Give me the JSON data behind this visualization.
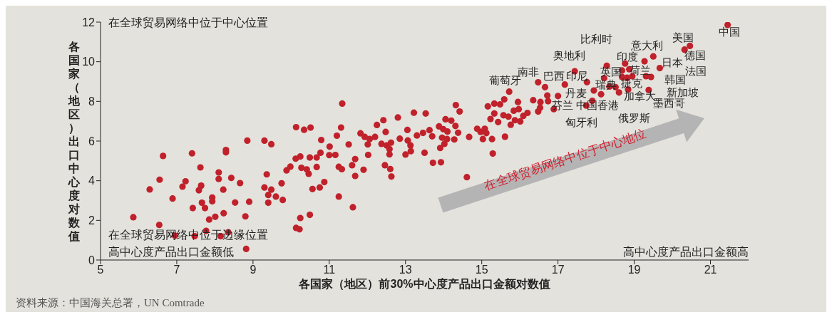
{
  "chart_data": {
    "type": "scatter",
    "xlabel": "各国家（地区）前30%中心度产品出口金额对数值",
    "ylabel": "各国家（地区）出口中心度对数值",
    "xlim": [
      5,
      22
    ],
    "xticks": [
      5,
      7,
      9,
      11,
      13,
      15,
      17,
      19,
      21
    ],
    "ylim": [
      0,
      12
    ],
    "yticks": [
      0,
      2,
      4,
      6,
      8,
      10,
      12
    ],
    "grid": false,
    "legend": false,
    "marker": "circle",
    "series": [
      {
        "color": "#c0212b",
        "x": [
          5.86,
          6.29,
          6.55,
          6.64,
          6.54,
          6.89,
          6.95,
          7.15,
          7.23,
          7.4,
          7.42,
          7.62,
          7.64,
          7.58,
          7.66,
          7.74,
          7.85,
          7.93,
          7.93,
          8.01,
          8.1,
          8.1,
          8.29,
          8.29,
          8.22,
          8.23,
          8.43,
          8.53,
          8.66,
          8.8,
          8.85,
          8.9,
          9.3,
          9.48,
          9.36,
          9.3,
          9.4,
          9.48,
          9.4,
          9.6,
          9.78,
          9.75,
          9.88,
          9.98,
          10.13,
          10.34,
          10.51,
          10.12,
          10.24,
          10.27,
          10.49,
          10.67,
          10.67,
          10.41,
          10.46,
          10.56,
          10.75,
          10.87,
          10.79,
          10.77,
          11.01,
          11,
          10.49,
          10.24,
          10.13,
          10.22,
          7.47,
          7.77,
          8.15,
          8.35,
          8.82,
          11.16,
          11.2,
          11.31,
          11.34,
          11.25,
          11.33,
          11.25,
          11.51,
          11.6,
          11.68,
          11.68,
          11.62,
          11.82,
          11.93,
          12.01,
          12.02,
          11.9,
          12.06,
          12.2,
          12.25,
          12.42,
          12.48,
          12.37,
          12.51,
          12.62,
          12.58,
          12.58,
          12.46,
          12.6,
          12.63,
          12.8,
          12.85,
          13,
          13.05,
          13.06,
          13.13,
          13.14,
          13.22,
          13.3,
          13.46,
          13.5,
          13.53,
          13.63,
          13.7,
          13.72,
          13.88,
          13.99,
          13.91,
          13.96,
          14.02,
          14.05,
          14.09,
          14.1,
          13.93,
          14.2,
          14.28,
          14.31,
          14.32,
          14.38,
          14.42,
          14.61,
          14.67,
          14.88,
          14.97,
          15.03,
          15.08,
          15.12,
          15.27,
          15.29,
          15.23,
          15.33,
          15.43,
          15.61,
          15.16,
          15.33,
          15.48,
          15.59,
          15.57,
          15.7,
          15.76,
          15.72,
          15.87,
          16.01,
          15.84,
          15.95,
          15.97,
          16.09,
          21.45,
          20.46,
          20.32,
          19.5,
          19.67,
          19.27,
          19.44,
          19.31,
          19.38,
          18.76,
          18.87,
          18.68,
          18.68,
          18.81,
          18.95,
          18.28,
          18.21,
          18.51,
          18.6,
          18.84,
          18.35,
          18.13,
          17.94,
          17.76,
          17.44,
          17.18,
          16.66,
          16.48,
          16.72,
          17,
          16.74,
          17.74,
          17.9,
          16.89,
          16.35,
          16.54,
          16.53,
          16.48,
          16.2
        ],
        "values": [
          2.16,
          3.56,
          4.05,
          5.25,
          1.77,
          3.1,
          1.23,
          3.7,
          3.97,
          5.38,
          2.62,
          4.67,
          3.75,
          3.52,
          2.89,
          2.62,
          2.04,
          3.15,
          2.96,
          2.18,
          4.42,
          4.09,
          5.55,
          5.43,
          3.55,
          2.36,
          4.14,
          2.9,
          3.88,
          2.2,
          6.02,
          2.94,
          6.02,
          5.84,
          4.32,
          3.66,
          3.28,
          3.55,
          2.89,
          3.2,
          3.03,
          3.87,
          4.52,
          4.71,
          6.7,
          6.57,
          6.68,
          5.11,
          5.22,
          4.65,
          5.17,
          5.17,
          4.69,
          4.57,
          4.35,
          3.58,
          3.66,
          3.93,
          6.05,
          5.41,
          5.72,
          5.29,
          2.28,
          2.12,
          1.62,
          1.55,
          1.2,
          1.47,
          1.2,
          1.4,
          0.56,
          5.3,
          6.27,
          6.68,
          7.89,
          4.7,
          4.58,
          3.2,
          5.83,
          4.78,
          5.09,
          4.24,
          2.66,
          6.39,
          6.21,
          5.83,
          5.3,
          4.55,
          6.1,
          6.21,
          6.81,
          7.05,
          6.46,
          5.86,
          5.78,
          5.92,
          5.6,
          5.33,
          4.78,
          4.59,
          4.21,
          7.19,
          6.12,
          5.32,
          6.56,
          6.03,
          5.78,
          5.49,
          7.43,
          6.28,
          6.41,
          5.41,
          7.39,
          6.55,
          6.24,
          4.9,
          6.74,
          6.6,
          5.65,
          6.17,
          5.86,
          7.1,
          6.1,
          6.48,
          4.93,
          7.03,
          6.08,
          6.76,
          7.81,
          6.42,
          7.49,
          4.18,
          6.21,
          6.62,
          6.46,
          6.1,
          6.62,
          6.4,
          6.1,
          5.37,
          7.11,
          7.39,
          6.96,
          6.22,
          7.75,
          7.89,
          7.85,
          8.1,
          7.3,
          7.23,
          6.82,
          8.49,
          7.05,
          6.99,
          7.53,
          7.97,
          7.61,
          7.27,
          11.86,
          10.8,
          10.61,
          10.27,
          9.68,
          10.02,
          9.23,
          9.27,
          8.57,
          9.91,
          9.62,
          9.56,
          9.23,
          9.19,
          9.27,
          9.8,
          9.17,
          8.72,
          8.45,
          8.6,
          8.75,
          8.36,
          8.55,
          8.97,
          9.52,
          8.85,
          8.72,
          8.96,
          8.3,
          8.27,
          8.01,
          7.79,
          8.03,
          7.61,
          8.06,
          7.97,
          7.68,
          7.49,
          7.42
        ]
      }
    ],
    "annotations": [
      "在全球贸易网络中位于中心位置",
      "在全球贸易网络中位于边缘位置",
      "高中心度产品出口金额低",
      "高中心度产品出口金额高",
      "在全球贸易网络中位于中心地位",
      "资料来源：中国海关总署，UN Comtrade",
      "葡萄牙",
      "南非",
      "巴西",
      "印尼",
      "奥地利",
      "比利时",
      "意大利",
      "美国",
      "中国",
      "德国",
      "印度",
      "日本",
      "英国",
      "荷兰",
      "法国",
      "瑞典",
      "捷克",
      "韩国",
      "丹麦",
      "加拿大",
      "新加坡",
      "芬兰",
      "中国香港",
      "墨西哥",
      "俄罗斯",
      "匈牙利"
    ]
  }
}
